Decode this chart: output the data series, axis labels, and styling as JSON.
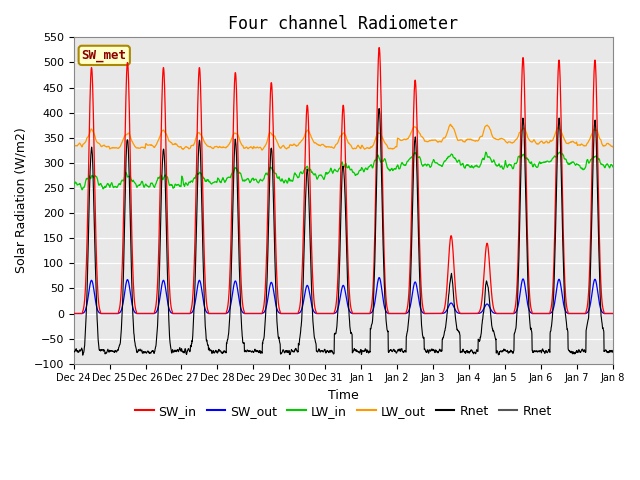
{
  "title": "Four channel Radiometer",
  "xlabel": "Time",
  "ylabel": "Solar Radiation (W/m2)",
  "ylim": [
    -100,
    550
  ],
  "station_label": "SW_met",
  "x_tick_labels": [
    "Dec 24",
    "Dec 25",
    "Dec 26",
    "Dec 27",
    "Dec 28",
    "Dec 29",
    "Dec 30",
    "Dec 31",
    "Jan 1",
    "Jan 2",
    "Jan 3",
    "Jan 4",
    "Jan 5",
    "Jan 6",
    "Jan 7",
    "Jan 8"
  ],
  "colors": {
    "SW_in": "#ff0000",
    "SW_out": "#0000ff",
    "LW_in": "#00cc00",
    "LW_out": "#ff9900",
    "Rnet": "#000000",
    "Rnet2": "#555555",
    "plot_bg": "#e8e8e8"
  },
  "sw_peaks": [
    490,
    500,
    490,
    490,
    480,
    460,
    415,
    415,
    530,
    465,
    155,
    140,
    510,
    505,
    505
  ],
  "sw_out_ratio": 0.135,
  "lw_in_base": [
    255,
    255,
    255,
    260,
    265,
    265,
    270,
    280,
    290,
    295,
    295,
    295,
    295,
    300,
    295
  ],
  "lw_out_base": [
    335,
    330,
    335,
    330,
    330,
    330,
    335,
    330,
    330,
    345,
    345,
    345,
    340,
    340,
    335
  ],
  "night_rnet": -75,
  "title_fontsize": 12,
  "axis_fontsize": 9,
  "legend_fontsize": 9
}
